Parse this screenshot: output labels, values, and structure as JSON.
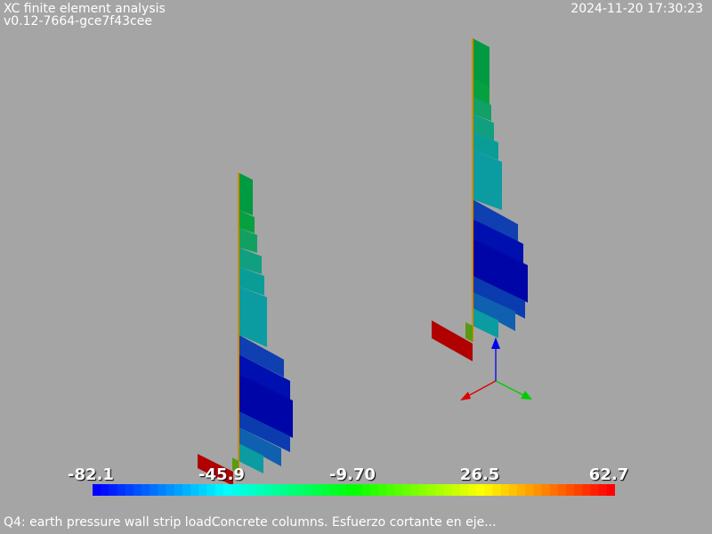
{
  "header": {
    "app_title": "XC finite element analysis",
    "version": "v0.12-7664-gce7f43cee",
    "timestamp": "2024-11-20 17:30:23"
  },
  "scalar_bar": {
    "tick_labels": [
      "-82.1",
      "-45.9",
      "-9.70",
      "26.5",
      "62.7"
    ],
    "min": -82.1,
    "max": 62.7,
    "colormap": "blue-cyan-green-yellow-red"
  },
  "caption": "Q4: earth pressure wall strip loadConcrete columns. Esfuerzo cortante en eje...",
  "colors": {
    "background": "#a5a5a5",
    "text": "#ffffff",
    "axis_x": "#dd0000",
    "axis_y": "#00cc00",
    "axis_z": "#0000ee"
  }
}
